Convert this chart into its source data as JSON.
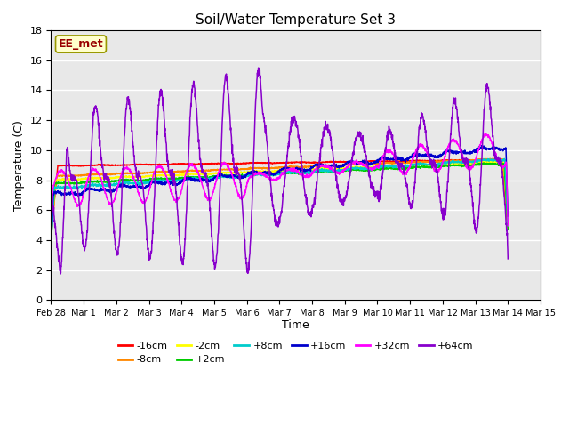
{
  "title": "Soil/Water Temperature Set 3",
  "xlabel": "Time",
  "ylabel": "Temperature (C)",
  "annotation": "EE_met",
  "ylim": [
    0,
    18
  ],
  "yticks": [
    0,
    2,
    4,
    6,
    8,
    10,
    12,
    14,
    16,
    18
  ],
  "x_labels": [
    "Feb 28",
    "Mar 1",
    "Mar 2",
    "Mar 3",
    "Mar 4",
    "Mar 5",
    "Mar 6",
    "Mar 7",
    "Mar 8",
    "Mar 9",
    "Mar 10",
    "Mar 11",
    "Mar 12",
    "Mar 13",
    "Mar 14",
    "Mar 15"
  ],
  "series": [
    {
      "label": "-16cm",
      "color": "#ff0000"
    },
    {
      "label": "-8cm",
      "color": "#ff8800"
    },
    {
      "label": "-2cm",
      "color": "#ffff00"
    },
    {
      "label": "+2cm",
      "color": "#00cc00"
    },
    {
      "label": "+8cm",
      "color": "#00cccc"
    },
    {
      "label": "+16cm",
      "color": "#0000cc"
    },
    {
      "label": "+32cm",
      "color": "#ff00ff"
    },
    {
      "label": "+64cm",
      "color": "#8800cc"
    }
  ],
  "bg_color": "#e8e8e8",
  "fig_bg": "#ffffff"
}
